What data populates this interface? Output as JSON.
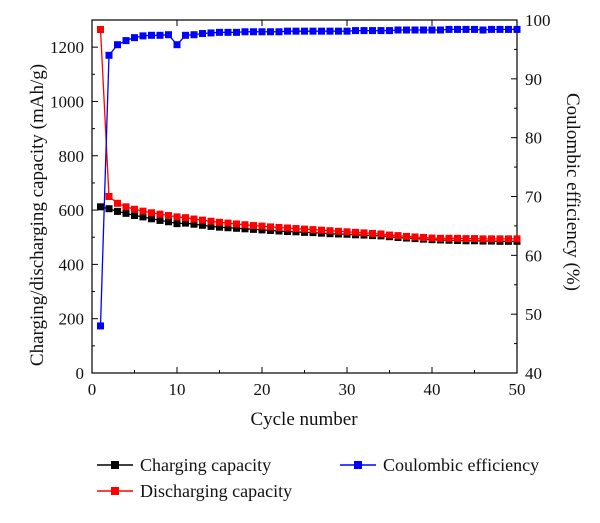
{
  "chart_data": {
    "type": "line",
    "xlabel": "Cycle number",
    "ylabel": "Charging/discharging capacity (mAh/g)",
    "y2label": "Coulombic efficiency (%)",
    "xlim": [
      0,
      50
    ],
    "ylim": [
      0,
      1300
    ],
    "y2lim": [
      40,
      100
    ],
    "xticks": [
      "0",
      "10",
      "20",
      "30",
      "40",
      "50"
    ],
    "yticks": [
      "0",
      "200",
      "400",
      "600",
      "800",
      "1000",
      "1200"
    ],
    "y2ticks": [
      "40",
      "50",
      "60",
      "70",
      "80",
      "90",
      "100"
    ],
    "grid": false,
    "legend_position": "bottom",
    "x": [
      1,
      2,
      3,
      4,
      5,
      6,
      7,
      8,
      9,
      10,
      11,
      12,
      13,
      14,
      15,
      16,
      17,
      18,
      19,
      20,
      21,
      22,
      23,
      24,
      25,
      26,
      27,
      28,
      29,
      30,
      31,
      32,
      33,
      34,
      35,
      36,
      37,
      38,
      39,
      40,
      41,
      42,
      43,
      44,
      45,
      46,
      47,
      48,
      49,
      50
    ],
    "series": [
      {
        "name": "Charging capacity",
        "axis": "left",
        "color": "#000000",
        "values": [
          612,
          605,
          595,
          588,
          580,
          575,
          568,
          562,
          557,
          550,
          552,
          548,
          544,
          540,
          537,
          535,
          533,
          531,
          529,
          527,
          525,
          523,
          521,
          520,
          518,
          517,
          515,
          513,
          512,
          511,
          509,
          508,
          506,
          505,
          502,
          499,
          497,
          495,
          493,
          491,
          490,
          489,
          488,
          487,
          487,
          486,
          486,
          485,
          485,
          485
        ]
      },
      {
        "name": "Discharging capacity",
        "axis": "left",
        "color": "#ff0000",
        "values": [
          1265,
          650,
          625,
          612,
          603,
          596,
          590,
          585,
          580,
          575,
          572,
          567,
          563,
          559,
          555,
          552,
          549,
          546,
          543,
          541,
          538,
          536,
          534,
          532,
          530,
          528,
          526,
          524,
          522,
          520,
          518,
          516,
          514,
          512,
          508,
          506,
          503,
          501,
          499,
          497,
          496,
          496,
          496,
          495,
          495,
          494,
          494,
          494,
          494,
          494
        ]
      },
      {
        "name": "Coulombic efficiency",
        "axis": "right",
        "color": "#0000ff",
        "values": [
          48.0,
          94.0,
          95.8,
          96.5,
          97.0,
          97.3,
          97.4,
          97.4,
          97.5,
          95.8,
          97.4,
          97.5,
          97.7,
          97.8,
          97.9,
          97.9,
          97.9,
          98.0,
          98.0,
          98.0,
          98.0,
          98.0,
          98.1,
          98.1,
          98.1,
          98.1,
          98.1,
          98.1,
          98.1,
          98.1,
          98.2,
          98.2,
          98.2,
          98.2,
          98.2,
          98.3,
          98.3,
          98.3,
          98.3,
          98.3,
          98.3,
          98.4,
          98.4,
          98.4,
          98.4,
          98.3,
          98.4,
          98.4,
          98.4,
          98.4
        ]
      }
    ]
  }
}
